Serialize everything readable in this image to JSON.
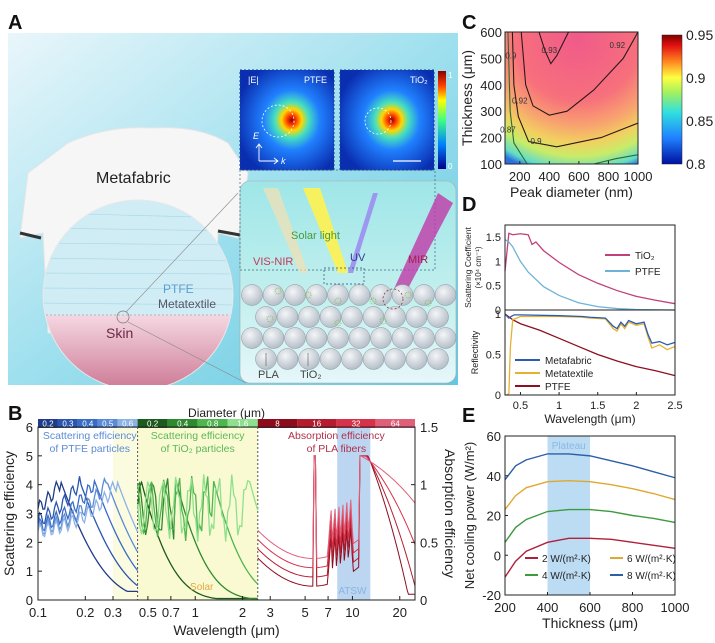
{
  "panels": {
    "A": "A",
    "B": "B",
    "C": "C",
    "D": "D",
    "E": "E"
  },
  "illustration": {
    "shirt_label": "Metafabric",
    "fabric_label_1": "PTFE",
    "fabric_label_2": "Metatextile",
    "skin_label": "Skin",
    "field_label": "|E|",
    "field_panels": [
      "PTFE",
      "TiO₂"
    ],
    "field_colorbar": {
      "max": "1",
      "min": "0"
    },
    "axis_E": "E",
    "axis_k": "k",
    "solar_label": "Solar light",
    "vis_label": "VIS-NIR",
    "uv_label": "UV",
    "mir_label": "MIR",
    "pla_label": "PLA",
    "tio2_label": "TiO₂"
  },
  "chart_data": [
    {
      "id": "B",
      "type": "line",
      "title": "Diameter (μm)",
      "xlabel": "Wavelength (μm)",
      "ylabel": "Scattering efficiency",
      "ylabel_right": "Absorption efficiency",
      "xscale": "log",
      "xlim": [
        0.1,
        25
      ],
      "ylim": [
        0,
        6
      ],
      "ylim_right": [
        0,
        1.5
      ],
      "xticks": [
        "0.1",
        "0.2",
        "0.3",
        "0.5",
        "0.7",
        "1",
        "2",
        "3",
        "5",
        "7",
        "10",
        "20"
      ],
      "xtick_values": [
        0.1,
        0.2,
        0.3,
        0.5,
        0.7,
        1,
        2,
        3,
        5,
        7,
        10,
        20
      ],
      "yticks": [
        "0",
        "1",
        "2",
        "3",
        "4",
        "5",
        "6"
      ],
      "yticks_right": [
        "0",
        "0.5",
        "1",
        "1.5"
      ],
      "sections": [
        {
          "name": "Scattering efficiency of PTFE particles",
          "range": [
            0.1,
            0.43
          ],
          "diameters": [
            "0.2",
            "0.3",
            "0.4",
            "0.5",
            "0.6"
          ],
          "colors": [
            "#1f3c8a",
            "#2a56b0",
            "#3a6cc6",
            "#5b8bd6",
            "#8db2e6"
          ]
        },
        {
          "name": "Scattering efficiency of TiO₂ particles",
          "range": [
            0.43,
            2.5
          ],
          "diameters": [
            "0.2",
            "0.4",
            "0.8",
            "1.6"
          ],
          "colors": [
            "#1d5a1d",
            "#2f8a2f",
            "#4fb54f",
            "#8ee08e"
          ]
        },
        {
          "name": "Absorption efficiency of PLA fibers",
          "range": [
            2.5,
            25
          ],
          "diameters": [
            "8",
            "16",
            "32",
            "64"
          ],
          "colors": [
            "#8c0c1c",
            "#b51d2e",
            "#d6334a",
            "#e0607a"
          ]
        }
      ],
      "annotations": {
        "solar": "Solar",
        "atsw": "ATSW",
        "atsw_range": [
          8,
          13
        ]
      }
    },
    {
      "id": "C",
      "type": "heatmap",
      "xlabel": "Peak diameter (nm)",
      "ylabel": "Thickness (μm)",
      "xlim": [
        100,
        1000
      ],
      "ylim": [
        100,
        600
      ],
      "xticks": [
        "200",
        "400",
        "600",
        "800",
        "1000"
      ],
      "yticks": [
        "100",
        "200",
        "300",
        "400",
        "500",
        "600"
      ],
      "colorbar": {
        "min": 0.8,
        "max": 0.95,
        "ticks": [
          "0.8",
          "0.85",
          "0.9",
          "0.95"
        ]
      },
      "contours": [
        {
          "level": "0.87",
          "points": [
            [
              120,
              600
            ],
            [
              135,
              300
            ],
            [
              160,
              180
            ],
            [
              250,
              100
            ]
          ]
        },
        {
          "level": "0.9",
          "points": [
            [
              150,
              600
            ],
            [
              160,
              400
            ],
            [
              190,
              280
            ],
            [
              260,
              185
            ],
            [
              450,
              165
            ],
            [
              750,
              200
            ],
            [
              1000,
              255
            ]
          ]
        },
        {
          "level": "0.92",
          "points": [
            [
              210,
              600
            ],
            [
              240,
              400
            ],
            [
              290,
              320
            ],
            [
              400,
              285
            ],
            [
              520,
              300
            ],
            [
              700,
              380
            ],
            [
              900,
              500
            ],
            [
              1000,
              600
            ]
          ]
        },
        {
          "level": "0.93",
          "points": [
            [
              330,
              600
            ],
            [
              370,
              530
            ],
            [
              410,
              480
            ],
            [
              450,
              510
            ],
            [
              530,
              600
            ]
          ]
        },
        {
          "level": "0.87b",
          "points": [
            [
              700,
              100
            ],
            [
              850,
              120
            ],
            [
              1000,
              135
            ]
          ]
        }
      ]
    },
    {
      "id": "D-top",
      "type": "line",
      "xlabel": "",
      "ylabel": "Scattering Coefficient (×10⁴ cm⁻¹)",
      "xlim": [
        0.3,
        2.5
      ],
      "ylim": [
        0,
        1.75
      ],
      "yticks": [
        "0",
        "0.5",
        "1",
        "1.5"
      ],
      "series": [
        {
          "name": "TiO₂",
          "color": "#c2407a",
          "x": [
            0.3,
            0.35,
            0.4,
            0.5,
            0.6,
            0.65,
            0.7,
            0.8,
            1.0,
            1.25,
            1.5,
            1.75,
            2.0,
            2.25,
            2.5
          ],
          "y": [
            0.8,
            1.58,
            1.55,
            1.57,
            1.55,
            1.35,
            1.4,
            1.22,
            0.98,
            0.73,
            0.55,
            0.4,
            0.28,
            0.2,
            0.13
          ]
        },
        {
          "name": "PTFE",
          "color": "#6fb3d8",
          "x": [
            0.3,
            0.35,
            0.4,
            0.5,
            0.6,
            0.8,
            1.0,
            1.25,
            1.5,
            1.75,
            2.0,
            2.5
          ],
          "y": [
            1.45,
            1.4,
            1.3,
            1.0,
            0.78,
            0.48,
            0.3,
            0.15,
            0.07,
            0.03,
            0.01,
            0.0
          ]
        }
      ]
    },
    {
      "id": "D-bottom",
      "type": "line",
      "xlabel": "Wavelength (μm)",
      "ylabel": "Reflectivity",
      "xlim": [
        0.3,
        2.5
      ],
      "ylim": [
        0,
        1.05
      ],
      "xticks": [
        "0.5",
        "1",
        "1.5",
        "2",
        "2.5"
      ],
      "yticks": [
        "0",
        "0.5",
        "1"
      ],
      "series": [
        {
          "name": "Metafabric",
          "color": "#2a5db0",
          "x": [
            0.3,
            0.35,
            0.38,
            0.42,
            0.5,
            1.0,
            1.3,
            1.4,
            1.6,
            1.7,
            1.75,
            1.8,
            1.85,
            1.9,
            2.0,
            2.1,
            2.15,
            2.2,
            2.3,
            2.4,
            2.5
          ],
          "y": [
            1.0,
            0.95,
            0.97,
            0.99,
            0.99,
            0.98,
            0.97,
            0.96,
            0.95,
            0.85,
            0.82,
            0.9,
            0.85,
            0.92,
            0.88,
            0.9,
            0.75,
            0.64,
            0.66,
            0.62,
            0.65
          ]
        },
        {
          "name": "Metatextile",
          "color": "#e8b030",
          "x": [
            0.3,
            0.33,
            0.35,
            0.37,
            0.4,
            0.5,
            1.0,
            1.3,
            1.4,
            1.6,
            1.7,
            1.75,
            1.8,
            1.85,
            1.9,
            2.0,
            2.1,
            2.15,
            2.2,
            2.3,
            2.4,
            2.5
          ],
          "y": [
            0.0,
            0.0,
            0.02,
            0.6,
            0.93,
            0.97,
            0.97,
            0.96,
            0.95,
            0.94,
            0.82,
            0.79,
            0.88,
            0.82,
            0.9,
            0.86,
            0.88,
            0.72,
            0.58,
            0.62,
            0.56,
            0.6
          ]
        },
        {
          "name": "PTFE",
          "color": "#8c1020",
          "x": [
            0.3,
            0.4,
            0.5,
            0.75,
            1.0,
            1.25,
            1.5,
            1.75,
            2.0,
            2.25,
            2.5
          ],
          "y": [
            1.0,
            0.93,
            0.88,
            0.8,
            0.7,
            0.6,
            0.5,
            0.42,
            0.35,
            0.3,
            0.24
          ]
        }
      ]
    },
    {
      "id": "E",
      "type": "line",
      "xlabel": "Thickness (μm)",
      "ylabel": "Net cooling power (W/m²)",
      "xlim": [
        200,
        1000
      ],
      "ylim": [
        -20,
        60
      ],
      "xticks": [
        "200",
        "400",
        "600",
        "800",
        "1000"
      ],
      "yticks": [
        "-20",
        "0",
        "20",
        "40",
        "60"
      ],
      "annotation": {
        "label": "Plateau",
        "range": [
          400,
          600
        ]
      },
      "series": [
        {
          "name": "2 W/(m²·K)",
          "color": "#b0203a",
          "x": [
            200,
            250,
            300,
            400,
            500,
            600,
            700,
            800,
            900,
            1000
          ],
          "y": [
            -11,
            -3,
            2,
            6.5,
            8.5,
            8.5,
            8,
            6.5,
            5,
            3.5
          ]
        },
        {
          "name": "4 W/(m²·K)",
          "color": "#3e9a3e",
          "x": [
            200,
            250,
            300,
            400,
            500,
            600,
            700,
            800,
            900,
            1000
          ],
          "y": [
            6.5,
            14,
            18,
            22,
            23,
            23,
            22,
            20,
            18.5,
            16.5
          ]
        },
        {
          "name": "6 W/(m²·K)",
          "color": "#e0a830",
          "x": [
            200,
            250,
            300,
            400,
            500,
            600,
            700,
            800,
            900,
            1000
          ],
          "y": [
            23,
            30,
            34,
            37,
            37.5,
            37,
            35.5,
            33.5,
            31,
            28
          ]
        },
        {
          "name": "8 W/(m²·K)",
          "color": "#2d5fa8",
          "x": [
            200,
            250,
            300,
            400,
            500,
            600,
            700,
            800,
            900,
            1000
          ],
          "y": [
            38,
            45,
            48,
            51,
            51,
            50,
            47.5,
            45,
            42,
            39
          ]
        }
      ]
    }
  ]
}
